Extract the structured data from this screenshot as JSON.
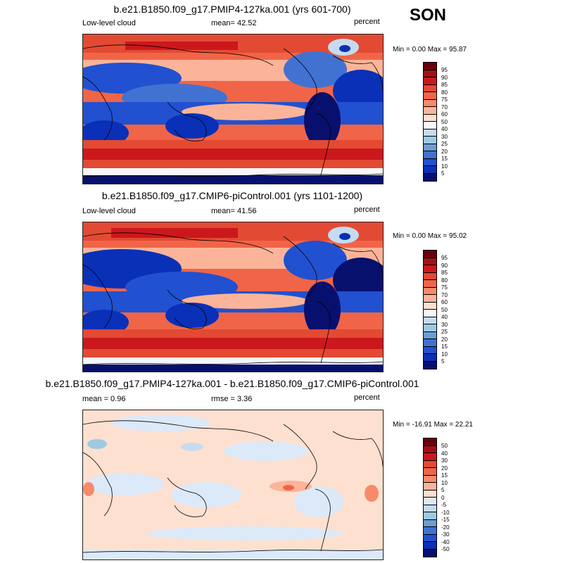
{
  "season": "SON",
  "panels": [
    {
      "title": "b.e21.B1850.f09_g17.PMIP4-127ka.001 (yrs 601-700)",
      "left_label": "Low-level cloud",
      "center_label": "mean=  42.52",
      "right_label": "percent",
      "minmax": "Min =   0.00 Max =  95.87",
      "colorbar_labels": [
        "95",
        "90",
        "85",
        "80",
        "75",
        "70",
        "60",
        "50",
        "40",
        "30",
        "25",
        "20",
        "15",
        "10",
        "5"
      ]
    },
    {
      "title": "b.e21.B1850.f09_g17.CMIP6-piControl.001 (yrs 1101-1200)",
      "left_label": "Low-level cloud",
      "center_label": "mean=  41.56",
      "right_label": "percent",
      "minmax": "Min =   0.00 Max =  95.02",
      "colorbar_labels": [
        "95",
        "90",
        "85",
        "80",
        "75",
        "70",
        "60",
        "50",
        "40",
        "30",
        "25",
        "20",
        "15",
        "10",
        "5"
      ]
    },
    {
      "title": "b.e21.B1850.f09_g17.PMIP4-127ka.001 - b.e21.B1850.f09_g17.CMIP6-piControl.001",
      "left_label": "mean =   0.96",
      "center_label": "rmse =   3.36",
      "right_label": "percent",
      "minmax": "Min = -16.91 Max =  22.21",
      "colorbar_labels": [
        "50",
        "40",
        "30",
        "20",
        "15",
        "10",
        "5",
        "0",
        "-5",
        "-10",
        "-15",
        "-20",
        "-30",
        "-40",
        "-50"
      ]
    }
  ],
  "colors": {
    "abs_scale": [
      "#67000d",
      "#a50f15",
      "#cb181d",
      "#e34a33",
      "#f06548",
      "#f68a6a",
      "#fbb499",
      "#fde0d0",
      "#f4f8fc",
      "#c6dbef",
      "#9ecae1",
      "#6a9fd6",
      "#4272d1",
      "#2151d0",
      "#0a30b8",
      "#08106e"
    ],
    "diff_scale": [
      "#67000d",
      "#a50f15",
      "#cb181d",
      "#e34a33",
      "#f06548",
      "#f68a6a",
      "#fbb499",
      "#fde0d0",
      "#dce9f8",
      "#c6dbef",
      "#9ecae1",
      "#6a9fd6",
      "#4272d1",
      "#2151d0",
      "#0a30b8",
      "#08106e"
    ]
  }
}
